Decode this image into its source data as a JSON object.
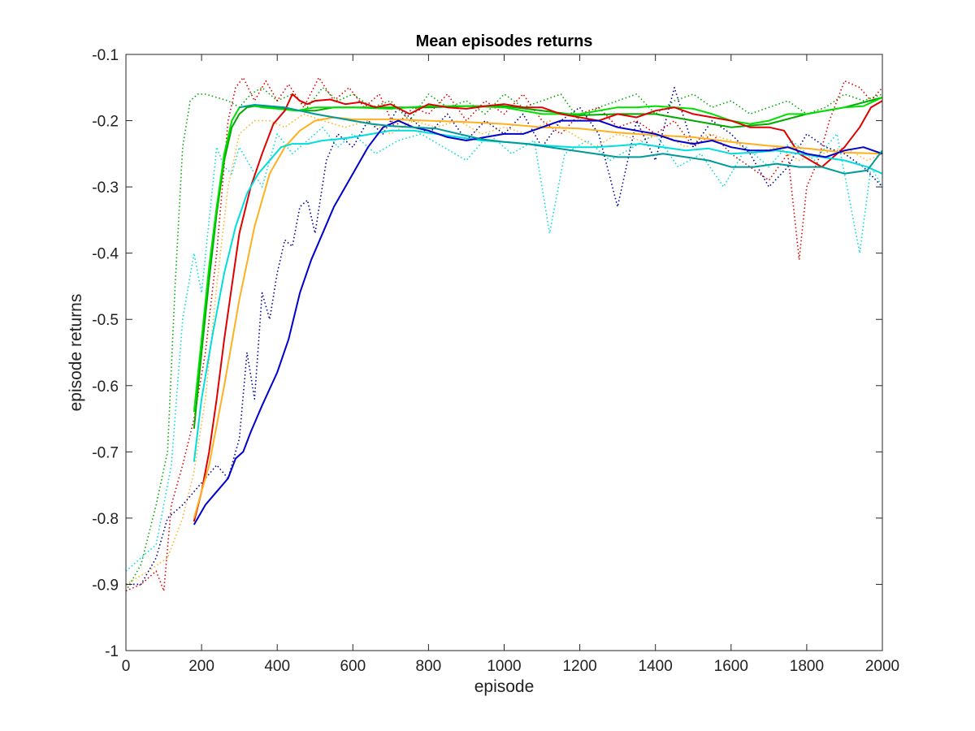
{
  "chart_data": {
    "type": "line",
    "title": "Mean episodes returns",
    "xlabel": "episode",
    "ylabel": "episode returns",
    "xlim": [
      0,
      2000
    ],
    "ylim": [
      -1,
      -0.1
    ],
    "xticks": [
      0,
      200,
      400,
      600,
      800,
      1000,
      1200,
      1400,
      1600,
      1800,
      2000
    ],
    "yticks": [
      -1,
      -0.9,
      -0.8,
      -0.7,
      -0.6,
      -0.5,
      -0.4,
      -0.3,
      -0.2,
      -0.1
    ],
    "xtick_labels": [
      "0",
      "200",
      "400",
      "600",
      "800",
      "1000",
      "1200",
      "1400",
      "1600",
      "1800",
      "2000"
    ],
    "ytick_labels": [
      "-1",
      "-0.9",
      "-0.8",
      "-0.7",
      "-0.6",
      "-0.5",
      "-0.4",
      "-0.3",
      "-0.2",
      "-0.1"
    ],
    "grid": false,
    "series": [
      {
        "color": "#00aa00",
        "style": "dotted",
        "x": [
          0,
          40,
          80,
          110,
          130,
          150,
          170,
          190,
          210,
          240,
          270,
          300,
          330,
          360,
          400,
          440,
          480,
          520,
          560,
          600,
          650,
          700,
          750,
          800,
          850,
          900,
          950,
          1000,
          1050,
          1100,
          1150,
          1200,
          1250,
          1300,
          1350,
          1400,
          1450,
          1500,
          1550,
          1600,
          1650,
          1700,
          1750,
          1800,
          1850,
          1900,
          1950,
          2000
        ],
        "y": [
          -0.91,
          -0.87,
          -0.78,
          -0.7,
          -0.45,
          -0.24,
          -0.17,
          -0.16,
          -0.16,
          -0.165,
          -0.17,
          -0.18,
          -0.16,
          -0.15,
          -0.17,
          -0.16,
          -0.18,
          -0.15,
          -0.17,
          -0.16,
          -0.18,
          -0.17,
          -0.2,
          -0.16,
          -0.18,
          -0.17,
          -0.19,
          -0.16,
          -0.18,
          -0.17,
          -0.16,
          -0.2,
          -0.18,
          -0.17,
          -0.16,
          -0.19,
          -0.17,
          -0.16,
          -0.18,
          -0.17,
          -0.19,
          -0.18,
          -0.17,
          -0.19,
          -0.18,
          -0.16,
          -0.17,
          -0.16
        ]
      },
      {
        "color": "#00aa00",
        "style": "solid",
        "x": [
          180,
          200,
          220,
          240,
          260,
          280,
          300,
          320,
          340,
          360,
          400,
          450,
          500,
          550,
          600,
          700,
          800,
          900,
          1000,
          1100,
          1200,
          1300,
          1400,
          1500,
          1600,
          1700,
          1800,
          1900,
          2000
        ],
        "y": [
          -0.665,
          -0.55,
          -0.44,
          -0.34,
          -0.26,
          -0.21,
          -0.19,
          -0.18,
          -0.178,
          -0.178,
          -0.18,
          -0.185,
          -0.185,
          -0.18,
          -0.18,
          -0.18,
          -0.18,
          -0.178,
          -0.178,
          -0.185,
          -0.192,
          -0.19,
          -0.19,
          -0.2,
          -0.21,
          -0.205,
          -0.19,
          -0.18,
          -0.165
        ]
      },
      {
        "color": "#00e000",
        "style": "solid",
        "x": [
          180,
          200,
          220,
          240,
          260,
          280,
          300,
          330,
          360,
          400,
          450,
          500,
          550,
          600,
          700,
          800,
          900,
          1000,
          1100,
          1200,
          1300,
          1350,
          1400,
          1500,
          1550,
          1600,
          1650,
          1700,
          1750,
          1800,
          1850,
          1900,
          1950,
          2000
        ],
        "y": [
          -0.64,
          -0.53,
          -0.42,
          -0.33,
          -0.25,
          -0.2,
          -0.18,
          -0.177,
          -0.18,
          -0.182,
          -0.185,
          -0.18,
          -0.18,
          -0.18,
          -0.182,
          -0.178,
          -0.178,
          -0.18,
          -0.19,
          -0.19,
          -0.18,
          -0.18,
          -0.178,
          -0.182,
          -0.19,
          -0.2,
          -0.205,
          -0.2,
          -0.19,
          -0.19,
          -0.185,
          -0.18,
          -0.178,
          -0.165
        ]
      },
      {
        "color": "#e00000",
        "style": "dotted",
        "x": [
          0,
          40,
          80,
          100,
          120,
          150,
          180,
          210,
          240,
          270,
          290,
          310,
          340,
          370,
          400,
          430,
          470,
          510,
          550,
          590,
          630,
          670,
          710,
          760,
          800,
          850,
          900,
          950,
          1000,
          1050,
          1100,
          1150,
          1200,
          1250,
          1300,
          1350,
          1400,
          1450,
          1500,
          1550,
          1600,
          1650,
          1700,
          1750,
          1780,
          1800,
          1830,
          1860,
          1900,
          1940,
          1970,
          2000
        ],
        "y": [
          -0.91,
          -0.9,
          -0.88,
          -0.91,
          -0.78,
          -0.72,
          -0.65,
          -0.55,
          -0.4,
          -0.2,
          -0.15,
          -0.135,
          -0.17,
          -0.14,
          -0.17,
          -0.145,
          -0.18,
          -0.135,
          -0.17,
          -0.15,
          -0.18,
          -0.16,
          -0.21,
          -0.18,
          -0.19,
          -0.16,
          -0.2,
          -0.17,
          -0.19,
          -0.16,
          -0.2,
          -0.22,
          -0.19,
          -0.18,
          -0.21,
          -0.2,
          -0.22,
          -0.2,
          -0.24,
          -0.22,
          -0.25,
          -0.27,
          -0.29,
          -0.25,
          -0.41,
          -0.3,
          -0.26,
          -0.2,
          -0.14,
          -0.15,
          -0.17,
          -0.15
        ]
      },
      {
        "color": "#e00000",
        "style": "solid",
        "x": [
          180,
          200,
          220,
          240,
          260,
          280,
          300,
          330,
          360,
          390,
          420,
          440,
          460,
          480,
          500,
          540,
          580,
          620,
          660,
          700,
          750,
          800,
          850,
          900,
          950,
          1000,
          1050,
          1100,
          1150,
          1200,
          1250,
          1300,
          1350,
          1400,
          1450,
          1500,
          1550,
          1600,
          1650,
          1700,
          1740,
          1780,
          1810,
          1840,
          1870,
          1900,
          1940,
          1970,
          2000
        ],
        "y": [
          -0.805,
          -0.76,
          -0.7,
          -0.62,
          -0.53,
          -0.45,
          -0.37,
          -0.3,
          -0.25,
          -0.205,
          -0.185,
          -0.16,
          -0.17,
          -0.175,
          -0.17,
          -0.168,
          -0.175,
          -0.172,
          -0.18,
          -0.175,
          -0.19,
          -0.175,
          -0.18,
          -0.182,
          -0.178,
          -0.175,
          -0.18,
          -0.18,
          -0.19,
          -0.195,
          -0.2,
          -0.19,
          -0.195,
          -0.185,
          -0.18,
          -0.19,
          -0.195,
          -0.2,
          -0.21,
          -0.21,
          -0.215,
          -0.25,
          -0.26,
          -0.27,
          -0.255,
          -0.24,
          -0.21,
          -0.18,
          -0.17
        ]
      },
      {
        "color": "#ffb020",
        "style": "dotted",
        "x": [
          0,
          60,
          110,
          150,
          180,
          210,
          240,
          270,
          300,
          340,
          380,
          420,
          470,
          520,
          580,
          640,
          700,
          760,
          820,
          880,
          940,
          1000,
          1060,
          1120,
          1180,
          1240,
          1300,
          1360,
          1420,
          1480,
          1540,
          1600,
          1660,
          1720,
          1780,
          1840,
          1900,
          1960,
          2000
        ],
        "y": [
          -0.9,
          -0.88,
          -0.86,
          -0.8,
          -0.73,
          -0.62,
          -0.45,
          -0.3,
          -0.22,
          -0.2,
          -0.2,
          -0.21,
          -0.19,
          -0.2,
          -0.21,
          -0.2,
          -0.22,
          -0.2,
          -0.21,
          -0.2,
          -0.22,
          -0.21,
          -0.22,
          -0.2,
          -0.22,
          -0.24,
          -0.22,
          -0.23,
          -0.22,
          -0.24,
          -0.22,
          -0.23,
          -0.25,
          -0.24,
          -0.26,
          -0.25,
          -0.24,
          -0.26,
          -0.25
        ]
      },
      {
        "color": "#ffb020",
        "style": "solid",
        "x": [
          180,
          220,
          260,
          300,
          340,
          380,
          420,
          460,
          500,
          550,
          600,
          700,
          800,
          900,
          1000,
          1100,
          1200,
          1300,
          1400,
          1500,
          1600,
          1700,
          1800,
          1900,
          2000
        ],
        "y": [
          -0.8,
          -0.72,
          -0.6,
          -0.47,
          -0.36,
          -0.28,
          -0.24,
          -0.215,
          -0.2,
          -0.195,
          -0.198,
          -0.198,
          -0.2,
          -0.202,
          -0.205,
          -0.21,
          -0.212,
          -0.218,
          -0.222,
          -0.225,
          -0.232,
          -0.238,
          -0.242,
          -0.248,
          -0.25
        ]
      },
      {
        "color": "#00dddd",
        "style": "dotted",
        "x": [
          0,
          40,
          80,
          120,
          150,
          180,
          200,
          220,
          240,
          260,
          280,
          300,
          330,
          360,
          400,
          440,
          480,
          520,
          560,
          600,
          660,
          720,
          780,
          840,
          900,
          960,
          1020,
          1080,
          1120,
          1160,
          1220,
          1280,
          1340,
          1400,
          1460,
          1520,
          1580,
          1640,
          1700,
          1760,
          1820,
          1880,
          1940,
          1970,
          2000
        ],
        "y": [
          -0.88,
          -0.86,
          -0.84,
          -0.72,
          -0.5,
          -0.4,
          -0.46,
          -0.35,
          -0.24,
          -0.27,
          -0.28,
          -0.24,
          -0.27,
          -0.3,
          -0.22,
          -0.25,
          -0.23,
          -0.21,
          -0.24,
          -0.22,
          -0.25,
          -0.23,
          -0.22,
          -0.24,
          -0.26,
          -0.22,
          -0.25,
          -0.23,
          -0.37,
          -0.25,
          -0.23,
          -0.26,
          -0.24,
          -0.22,
          -0.27,
          -0.25,
          -0.3,
          -0.24,
          -0.27,
          -0.23,
          -0.26,
          -0.22,
          -0.4,
          -0.27,
          -0.3
        ]
      },
      {
        "color": "#00dddd",
        "style": "solid",
        "x": [
          180,
          200,
          230,
          260,
          290,
          320,
          350,
          380,
          410,
          440,
          480,
          520,
          560,
          600,
          650,
          700,
          760,
          820,
          880,
          940,
          1000,
          1060,
          1120,
          1180,
          1240,
          1300,
          1360,
          1420,
          1480,
          1540,
          1600,
          1660,
          1720,
          1780,
          1840,
          1900,
          1960,
          2000
        ],
        "y": [
          -0.715,
          -0.62,
          -0.52,
          -0.43,
          -0.36,
          -0.31,
          -0.28,
          -0.26,
          -0.24,
          -0.235,
          -0.235,
          -0.23,
          -0.228,
          -0.225,
          -0.22,
          -0.215,
          -0.215,
          -0.22,
          -0.225,
          -0.23,
          -0.232,
          -0.235,
          -0.238,
          -0.24,
          -0.24,
          -0.238,
          -0.235,
          -0.24,
          -0.245,
          -0.242,
          -0.25,
          -0.248,
          -0.245,
          -0.25,
          -0.255,
          -0.26,
          -0.27,
          -0.28
        ]
      },
      {
        "color": "#000099",
        "style": "dotted",
        "x": [
          0,
          40,
          80,
          110,
          150,
          180,
          210,
          240,
          270,
          300,
          320,
          340,
          360,
          380,
          400,
          420,
          440,
          460,
          480,
          500,
          530,
          560,
          600,
          640,
          680,
          720,
          760,
          800,
          850,
          900,
          950,
          1000,
          1050,
          1100,
          1150,
          1200,
          1250,
          1300,
          1350,
          1400,
          1450,
          1500,
          1550,
          1600,
          1650,
          1700,
          1750,
          1800,
          1850,
          1900,
          1950,
          2000
        ],
        "y": [
          -0.9,
          -0.9,
          -0.86,
          -0.8,
          -0.78,
          -0.76,
          -0.74,
          -0.72,
          -0.74,
          -0.68,
          -0.55,
          -0.62,
          -0.46,
          -0.5,
          -0.43,
          -0.38,
          -0.39,
          -0.33,
          -0.32,
          -0.37,
          -0.26,
          -0.22,
          -0.24,
          -0.2,
          -0.22,
          -0.18,
          -0.2,
          -0.22,
          -0.19,
          -0.23,
          -0.2,
          -0.22,
          -0.19,
          -0.24,
          -0.2,
          -0.18,
          -0.22,
          -0.33,
          -0.2,
          -0.26,
          -0.15,
          -0.24,
          -0.2,
          -0.22,
          -0.25,
          -0.3,
          -0.27,
          -0.22,
          -0.24,
          -0.25,
          -0.27,
          -0.3
        ]
      },
      {
        "color": "#0000cc",
        "style": "solid",
        "x": [
          180,
          210,
          240,
          270,
          290,
          310,
          330,
          360,
          400,
          430,
          460,
          490,
          520,
          550,
          580,
          610,
          640,
          680,
          720,
          760,
          800,
          850,
          900,
          950,
          1000,
          1050,
          1100,
          1150,
          1200,
          1250,
          1300,
          1350,
          1400,
          1450,
          1500,
          1550,
          1600,
          1650,
          1700,
          1750,
          1800,
          1850,
          1900,
          1950,
          2000
        ],
        "y": [
          -0.81,
          -0.78,
          -0.76,
          -0.74,
          -0.71,
          -0.7,
          -0.67,
          -0.63,
          -0.58,
          -0.53,
          -0.46,
          -0.41,
          -0.37,
          -0.33,
          -0.3,
          -0.27,
          -0.24,
          -0.21,
          -0.2,
          -0.21,
          -0.215,
          -0.225,
          -0.23,
          -0.225,
          -0.22,
          -0.22,
          -0.21,
          -0.2,
          -0.2,
          -0.2,
          -0.21,
          -0.215,
          -0.22,
          -0.23,
          -0.235,
          -0.23,
          -0.24,
          -0.245,
          -0.245,
          -0.24,
          -0.25,
          -0.255,
          -0.245,
          -0.24,
          -0.25
        ]
      },
      {
        "color": "#009999",
        "style": "solid",
        "x": [
          300,
          340,
          380,
          420,
          460,
          500,
          550,
          600,
          650,
          700,
          760,
          820,
          880,
          940,
          1000,
          1060,
          1120,
          1180,
          1240,
          1300,
          1360,
          1420,
          1480,
          1540,
          1600,
          1660,
          1720,
          1780,
          1840,
          1900,
          1960,
          2000
        ],
        "y": [
          -0.18,
          -0.176,
          -0.178,
          -0.18,
          -0.185,
          -0.19,
          -0.195,
          -0.2,
          -0.205,
          -0.208,
          -0.21,
          -0.212,
          -0.22,
          -0.228,
          -0.232,
          -0.235,
          -0.24,
          -0.245,
          -0.25,
          -0.255,
          -0.255,
          -0.25,
          -0.255,
          -0.26,
          -0.27,
          -0.27,
          -0.265,
          -0.27,
          -0.27,
          -0.28,
          -0.275,
          -0.245
        ]
      }
    ]
  }
}
